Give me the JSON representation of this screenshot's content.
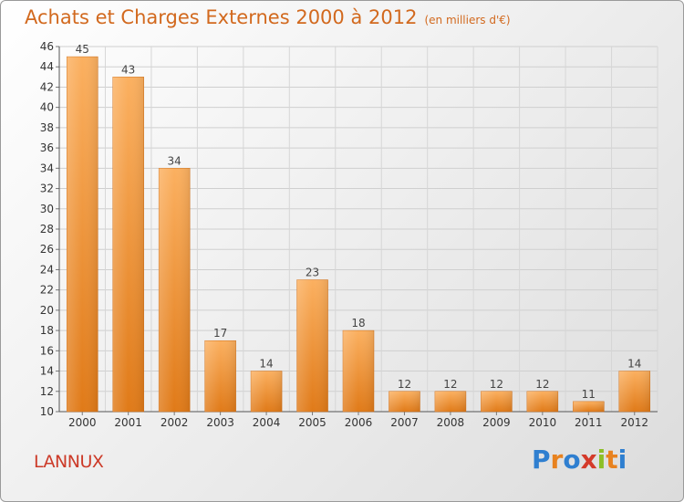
{
  "header": {
    "title": "Achats et Charges Externes 2000 à 2012",
    "unit": "(en milliers d'€)"
  },
  "footer": {
    "town": "LANNUX",
    "logo": "Proxiti"
  },
  "colors": {
    "title": "#d2691e",
    "town": "#cc3a28",
    "bar_light": "#fbb060",
    "bar_dark": "#e07a18",
    "logo_letters": [
      "#2f7fd0",
      "#e8821f",
      "#2f7fd0",
      "#d43a2a",
      "#8cbf26",
      "#e8821f",
      "#2f7fd0"
    ]
  },
  "chart_data": {
    "type": "bar",
    "title": "Achats et Charges Externes 2000 à 2012",
    "subtitle": "(en milliers d'€)",
    "categories": [
      "2000",
      "2001",
      "2002",
      "2003",
      "2004",
      "2005",
      "2006",
      "2007",
      "2008",
      "2009",
      "2010",
      "2011",
      "2012"
    ],
    "values": [
      45,
      43,
      34,
      17,
      14,
      23,
      18,
      12,
      12,
      12,
      12,
      11,
      14
    ],
    "ylim": [
      10,
      46
    ],
    "yticks": [
      10,
      12,
      14,
      16,
      18,
      20,
      22,
      24,
      26,
      28,
      30,
      32,
      34,
      36,
      38,
      40,
      42,
      44,
      46
    ],
    "grid": true,
    "data_labels": true,
    "legend": "none"
  }
}
